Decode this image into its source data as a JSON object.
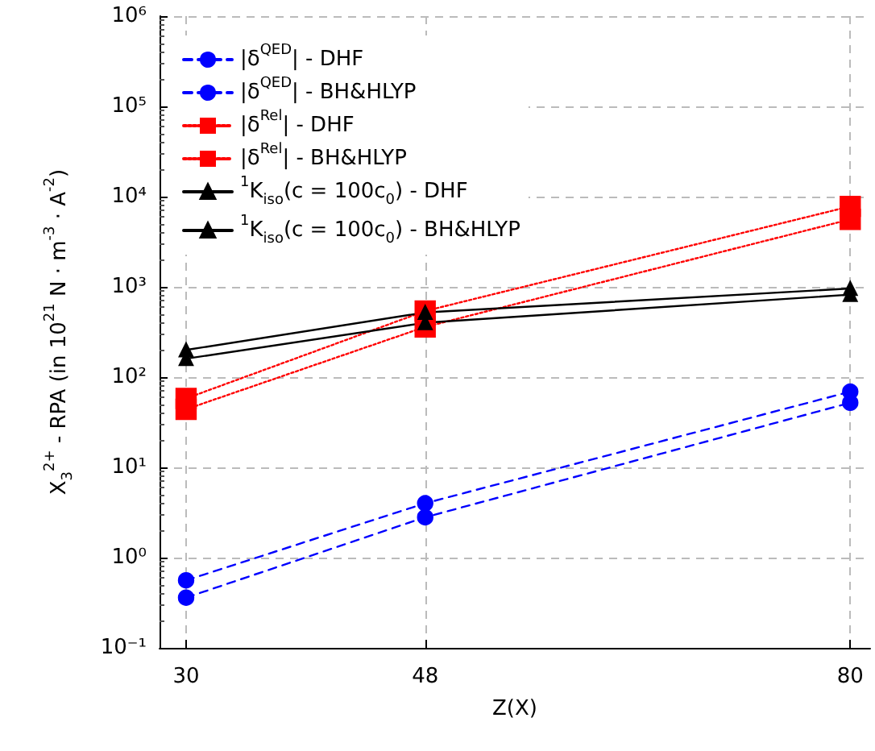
{
  "chart_data": {
    "type": "line",
    "xlabel": "Z(X)",
    "ylabel": "X$_{3}$$^{2+}$ - RPA (in 10$^{21}$ N · m$^{-3}$ · A$^{-2}$)",
    "x": [
      30,
      48,
      80
    ],
    "xlim": [
      28,
      81.5
    ],
    "xticks": [
      30,
      48,
      80
    ],
    "ylim": [
      0.1,
      1000000
    ],
    "yticks": [
      {
        "value": 0.1,
        "label": "10⁻¹"
      },
      {
        "value": 1,
        "label": "10⁰"
      },
      {
        "value": 10,
        "label": "10¹"
      },
      {
        "value": 100,
        "label": "10²"
      },
      {
        "value": 1000,
        "label": "10³"
      },
      {
        "value": 10000,
        "label": "10⁴"
      },
      {
        "value": 100000,
        "label": "10⁵"
      },
      {
        "value": 1000000,
        "label": "10⁶"
      }
    ],
    "log": "y",
    "grid": true,
    "legend": "top left",
    "series": [
      {
        "name": "|δ$^{QED}$| - DHF",
        "color": "#0000ff",
        "marker": "circle",
        "line_style": "dashed",
        "values": [
          0.56,
          4.0,
          69
        ]
      },
      {
        "name": "|δ$^{QED}$| - BH&HLYP",
        "color": "#0000ff",
        "marker": "circle",
        "line_style": "dashed",
        "values": [
          0.36,
          2.8,
          52
        ]
      },
      {
        "name": "|δ$^{Rel}$| - DHF",
        "color": "#ff0000",
        "marker": "square",
        "line_style": "dotted",
        "values": [
          58,
          540,
          7800
        ]
      },
      {
        "name": "|δ$^{Rel}$| - BH&HLYP",
        "color": "#ff0000",
        "marker": "square",
        "line_style": "dotted",
        "values": [
          44,
          360,
          5600
        ]
      },
      {
        "name": "$^{1}$K$_{iso}$(c = 100c$_{0}$) - DHF",
        "color": "#000000",
        "marker": "triangle",
        "line_style": "solid",
        "values": [
          200,
          520,
          960
        ]
      },
      {
        "name": "$^{1}$K$_{iso}$(c = 100c$_{0}$) - BH&HLYP",
        "color": "#000000",
        "marker": "triangle",
        "line_style": "solid",
        "values": [
          160,
          400,
          820
        ]
      }
    ]
  }
}
